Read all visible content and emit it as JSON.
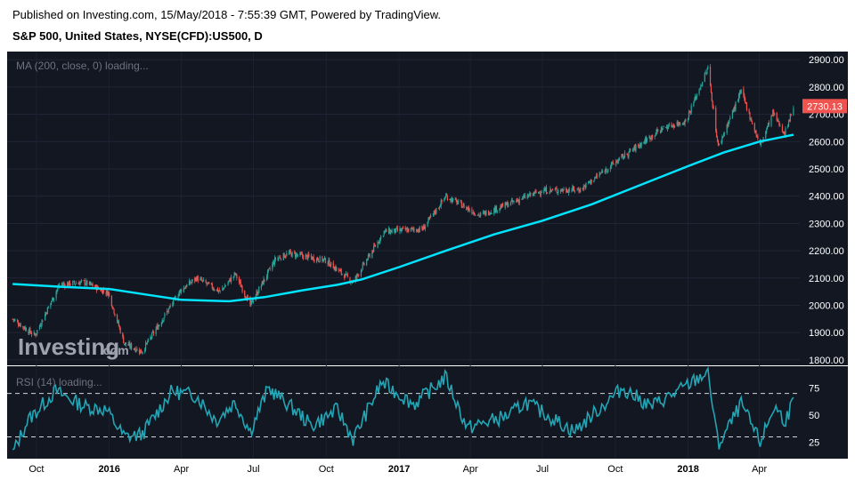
{
  "header": {
    "published": "Published on Investing.com, 15/May/2018 - 7:55:39 GMT, Powered by TradingView.",
    "symbol": "S&P 500, United States, NYSE(CFD):US500, D"
  },
  "indicators": {
    "ma_label": "MA (200, close, 0) loading...",
    "rsi_label": "RSI (14) loading..."
  },
  "watermark": {
    "brand": "Investing",
    "suffix": ".com"
  },
  "colors": {
    "background": "#131722",
    "up": "#26a69a",
    "down": "#ef5350",
    "ma_line": "#00e5ff",
    "rsi_line": "#22a5b4",
    "badge": "#ef5350"
  },
  "chart_data": [
    {
      "type": "candlestick",
      "title": "S&P 500, United States, NYSE(CFD):US500, D",
      "ylim": [
        1780,
        2930
      ],
      "y_ticks": [
        2900,
        2800,
        2700,
        2600,
        2500,
        2400,
        2300,
        2200,
        2100,
        2000,
        1900,
        1800
      ],
      "last_price": "2730.13",
      "x_tick_labels": [
        "Oct",
        "2016",
        "Apr",
        "Jul",
        "Oct",
        "2017",
        "Apr",
        "Jul",
        "Oct",
        "2018",
        "Apr"
      ],
      "price_close": [
        {
          "date": "2015-09-01",
          "value": 1950
        },
        {
          "date": "2015-09-29",
          "value": 1890
        },
        {
          "date": "2015-10-30",
          "value": 2075
        },
        {
          "date": "2015-11-30",
          "value": 2085
        },
        {
          "date": "2015-12-31",
          "value": 2045
        },
        {
          "date": "2016-01-20",
          "value": 1860
        },
        {
          "date": "2016-02-11",
          "value": 1830
        },
        {
          "date": "2016-03-31",
          "value": 2055
        },
        {
          "date": "2016-04-20",
          "value": 2100
        },
        {
          "date": "2016-05-20",
          "value": 2050
        },
        {
          "date": "2016-06-08",
          "value": 2115
        },
        {
          "date": "2016-06-27",
          "value": 2000
        },
        {
          "date": "2016-07-29",
          "value": 2170
        },
        {
          "date": "2016-08-15",
          "value": 2190
        },
        {
          "date": "2016-09-30",
          "value": 2165
        },
        {
          "date": "2016-11-04",
          "value": 2085
        },
        {
          "date": "2016-12-13",
          "value": 2270
        },
        {
          "date": "2017-01-31",
          "value": 2280
        },
        {
          "date": "2017-03-01",
          "value": 2400
        },
        {
          "date": "2017-04-13",
          "value": 2330
        },
        {
          "date": "2017-06-30",
          "value": 2420
        },
        {
          "date": "2017-08-18",
          "value": 2425
        },
        {
          "date": "2017-09-29",
          "value": 2520
        },
        {
          "date": "2017-11-30",
          "value": 2650
        },
        {
          "date": "2017-12-29",
          "value": 2675
        },
        {
          "date": "2018-01-26",
          "value": 2870
        },
        {
          "date": "2018-02-08",
          "value": 2580
        },
        {
          "date": "2018-03-09",
          "value": 2785
        },
        {
          "date": "2018-04-02",
          "value": 2585
        },
        {
          "date": "2018-04-18",
          "value": 2705
        },
        {
          "date": "2018-05-03",
          "value": 2630
        },
        {
          "date": "2018-05-14",
          "value": 2730
        }
      ],
      "ma_200": [
        {
          "date": "2015-09-01",
          "value": 2078
        },
        {
          "date": "2015-11-01",
          "value": 2068
        },
        {
          "date": "2016-01-01",
          "value": 2060
        },
        {
          "date": "2016-02-15",
          "value": 2040
        },
        {
          "date": "2016-04-01",
          "value": 2020
        },
        {
          "date": "2016-06-01",
          "value": 2015
        },
        {
          "date": "2016-07-15",
          "value": 2030
        },
        {
          "date": "2016-09-01",
          "value": 2055
        },
        {
          "date": "2016-10-15",
          "value": 2075
        },
        {
          "date": "2016-11-15",
          "value": 2095
        },
        {
          "date": "2017-01-01",
          "value": 2140
        },
        {
          "date": "2017-03-01",
          "value": 2200
        },
        {
          "date": "2017-05-01",
          "value": 2260
        },
        {
          "date": "2017-07-01",
          "value": 2310
        },
        {
          "date": "2017-09-01",
          "value": 2370
        },
        {
          "date": "2017-11-01",
          "value": 2440
        },
        {
          "date": "2018-01-01",
          "value": 2510
        },
        {
          "date": "2018-02-15",
          "value": 2560
        },
        {
          "date": "2018-04-01",
          "value": 2600
        },
        {
          "date": "2018-05-14",
          "value": 2625
        }
      ]
    },
    {
      "type": "line",
      "title": "RSI (14)",
      "ylim": [
        10,
        95
      ],
      "y_ticks": [
        75,
        50,
        25
      ],
      "reference_lines": [
        70,
        30
      ],
      "rsi": [
        {
          "date": "2015-09-01",
          "value": 15
        },
        {
          "date": "2015-09-20",
          "value": 45
        },
        {
          "date": "2015-10-25",
          "value": 72
        },
        {
          "date": "2015-12-01",
          "value": 58
        },
        {
          "date": "2015-12-28",
          "value": 55
        },
        {
          "date": "2016-01-20",
          "value": 30
        },
        {
          "date": "2016-02-11",
          "value": 32
        },
        {
          "date": "2016-03-20",
          "value": 72
        },
        {
          "date": "2016-04-20",
          "value": 68
        },
        {
          "date": "2016-05-15",
          "value": 45
        },
        {
          "date": "2016-06-08",
          "value": 62
        },
        {
          "date": "2016-06-27",
          "value": 35
        },
        {
          "date": "2016-07-20",
          "value": 75
        },
        {
          "date": "2016-08-30",
          "value": 50
        },
        {
          "date": "2016-09-12",
          "value": 40
        },
        {
          "date": "2016-10-15",
          "value": 55
        },
        {
          "date": "2016-11-04",
          "value": 28
        },
        {
          "date": "2016-12-10",
          "value": 80
        },
        {
          "date": "2017-01-20",
          "value": 60
        },
        {
          "date": "2017-03-01",
          "value": 85
        },
        {
          "date": "2017-03-28",
          "value": 38
        },
        {
          "date": "2017-05-20",
          "value": 50
        },
        {
          "date": "2017-06-10",
          "value": 62
        },
        {
          "date": "2017-08-10",
          "value": 35
        },
        {
          "date": "2017-10-10",
          "value": 75
        },
        {
          "date": "2017-11-15",
          "value": 58
        },
        {
          "date": "2017-12-20",
          "value": 72
        },
        {
          "date": "2018-01-26",
          "value": 90
        },
        {
          "date": "2018-02-08",
          "value": 22
        },
        {
          "date": "2018-03-09",
          "value": 60
        },
        {
          "date": "2018-04-02",
          "value": 25
        },
        {
          "date": "2018-04-20",
          "value": 58
        },
        {
          "date": "2018-05-03",
          "value": 45
        },
        {
          "date": "2018-05-14",
          "value": 62
        }
      ]
    }
  ]
}
